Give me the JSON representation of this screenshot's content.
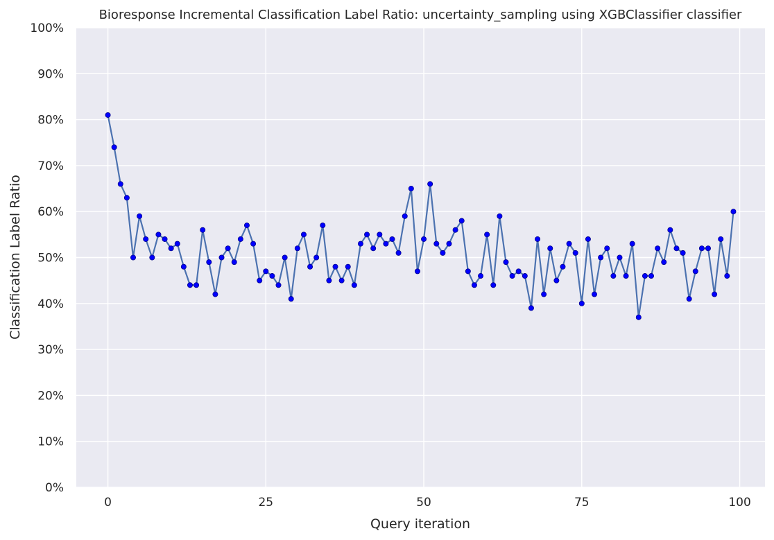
{
  "chart_data": {
    "type": "line",
    "title": "Bioresponse Incremental Classification Label Ratio: uncertainty_sampling using XGBClassifier classifier",
    "xlabel": "Query iteration",
    "ylabel": "Classification Label Ratio",
    "xlim": [
      -5,
      104
    ],
    "ylim": [
      0,
      100
    ],
    "x_ticks": [
      0,
      25,
      50,
      75,
      100
    ],
    "y_ticks": [
      0,
      10,
      20,
      30,
      40,
      50,
      60,
      70,
      80,
      90,
      100
    ],
    "y_tick_format": "percent",
    "grid": true,
    "background": "#eaeaf2",
    "line_color": "#4c72b0",
    "marker_color": "#0000ff",
    "series": [
      {
        "x": [
          0,
          1,
          2,
          3,
          4,
          5,
          6,
          7,
          8,
          9,
          10,
          11,
          12,
          13,
          14,
          15,
          16,
          17,
          18,
          19,
          20,
          21,
          22,
          23,
          24,
          25,
          26,
          27,
          28,
          29,
          30,
          31,
          32,
          33,
          34,
          35,
          36,
          37,
          38,
          39,
          40,
          41,
          42,
          43,
          44,
          45,
          46,
          47,
          48,
          49,
          50,
          51,
          52,
          53,
          54,
          55,
          56,
          57,
          58,
          59,
          60,
          61,
          62,
          63,
          64,
          65,
          66,
          67,
          68,
          69,
          70,
          71,
          72,
          73,
          74,
          75,
          76,
          77,
          78,
          79,
          80,
          81,
          82,
          83,
          84,
          85,
          86,
          87,
          88,
          89,
          90,
          91,
          92,
          93,
          94,
          95,
          96,
          97,
          98,
          99
        ],
        "values": [
          81,
          74,
          66,
          63,
          50,
          59,
          54,
          50,
          55,
          54,
          52,
          53,
          48,
          44,
          44,
          56,
          49,
          42,
          50,
          52,
          49,
          54,
          57,
          53,
          45,
          47,
          46,
          44,
          50,
          41,
          52,
          55,
          48,
          50,
          57,
          45,
          48,
          45,
          48,
          44,
          53,
          55,
          52,
          55,
          53,
          54,
          51,
          59,
          65,
          47,
          54,
          66,
          53,
          51,
          53,
          56,
          58,
          47,
          44,
          46,
          55,
          44,
          59,
          49,
          46,
          47,
          46,
          39,
          54,
          42,
          52,
          45,
          48,
          53,
          51,
          40,
          54,
          42,
          50,
          52,
          46,
          50,
          46,
          53,
          37,
          46,
          46,
          52,
          49,
          56,
          52,
          51,
          41,
          47,
          52,
          52,
          42,
          54,
          46,
          60
        ]
      }
    ]
  }
}
